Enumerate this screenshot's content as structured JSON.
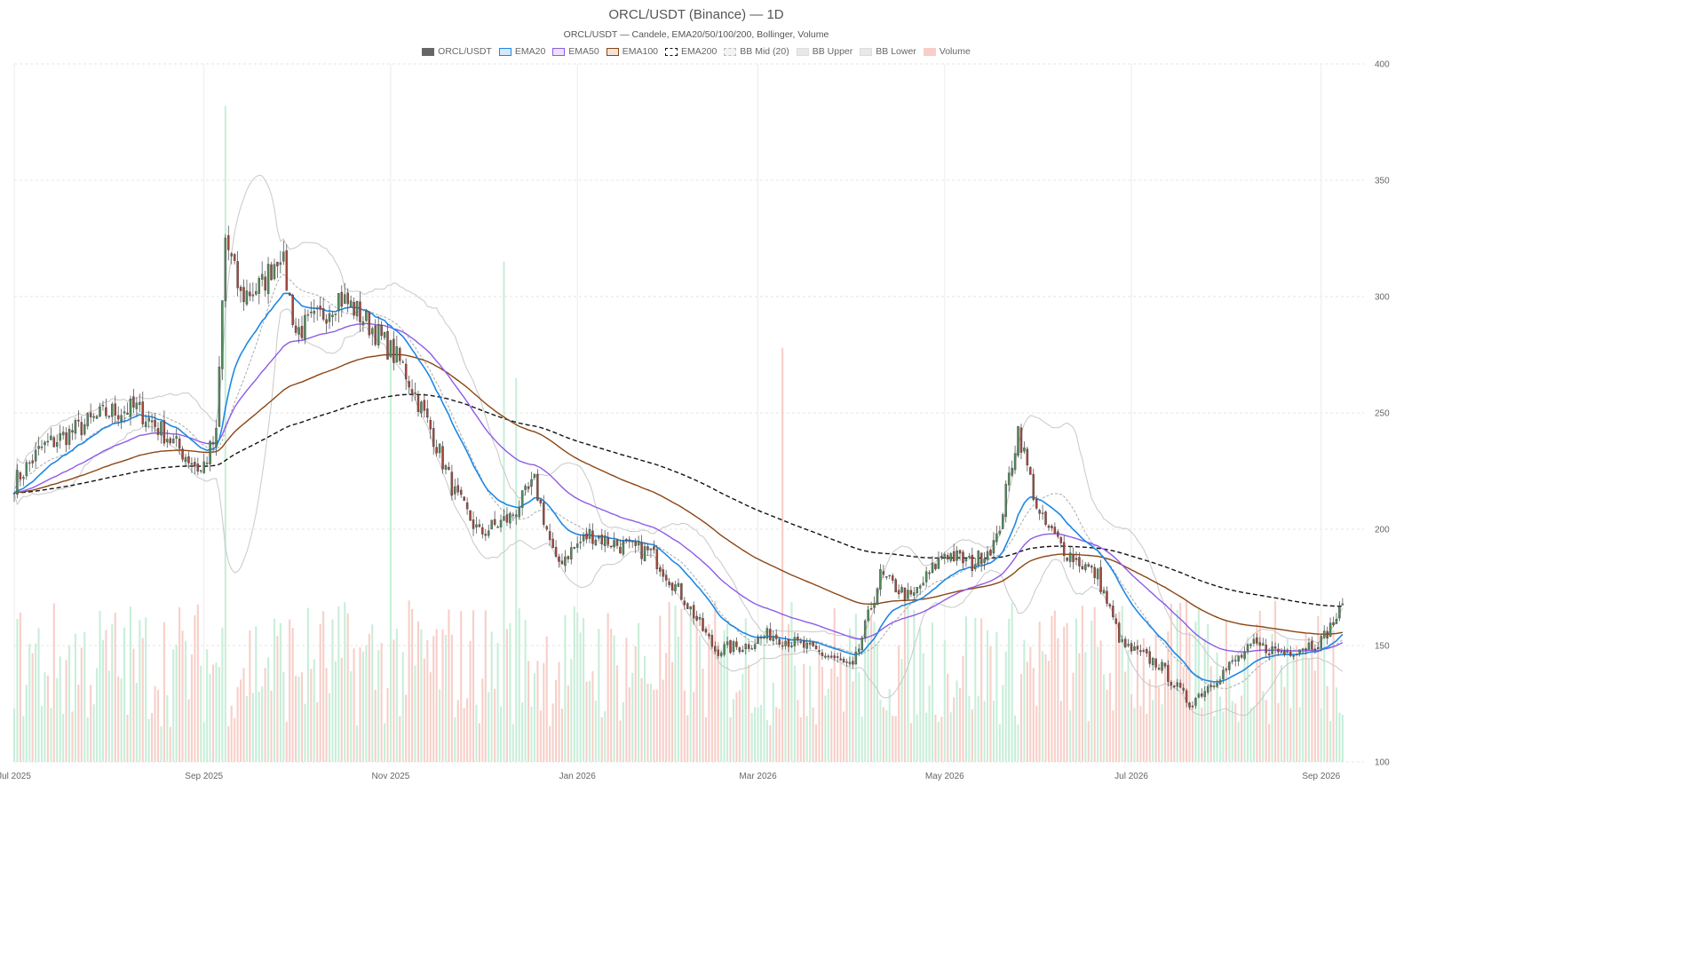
{
  "chart_data": {
    "type": "candlestick",
    "title": "ORCL/USDT (Binance) — 1D",
    "subtitle": "ORCL/USDT — Candele, EMA20/50/100/200, Bollinger, Volume",
    "legend": [
      {
        "name": "ORCL/USDT",
        "color": "#666666",
        "fill": "#666666",
        "style": "solid"
      },
      {
        "name": "EMA20",
        "color": "#1e88e5",
        "fill": "#d6e8fa",
        "style": "solid"
      },
      {
        "name": "EMA50",
        "color": "#8e5be8",
        "fill": "#ece1fb",
        "style": "solid"
      },
      {
        "name": "EMA100",
        "color": "#8b4513",
        "fill": "#f2e4d9",
        "style": "solid"
      },
      {
        "name": "EMA200",
        "color": "#111111",
        "fill": "#ffffff",
        "style": "dashed"
      },
      {
        "name": "BB Mid (20)",
        "color": "#bbbbbb",
        "fill": "#f3f3f3",
        "style": "dashed"
      },
      {
        "name": "BB Upper",
        "color": "#dddddd",
        "fill": "#e8e8e8",
        "style": "solid"
      },
      {
        "name": "BB Lower",
        "color": "#dddddd",
        "fill": "#e8e8e8",
        "style": "solid"
      },
      {
        "name": "Volume",
        "color": "#f7cfc8",
        "fill": "#f7cfc8",
        "style": "solid"
      }
    ],
    "x_range": [
      "2025-07-01",
      "2026-09-15"
    ],
    "x_ticks": [
      "Jul 2025",
      "Sep 2025",
      "Nov 2025",
      "Jan 2026",
      "Mar 2026",
      "May 2026",
      "Jul 2026",
      "Sep 2026"
    ],
    "y_range": [
      100,
      400
    ],
    "y_ticks": [
      100,
      150,
      200,
      250,
      300,
      350,
      400
    ],
    "grid": true,
    "legend_position": "top-center",
    "colors": {
      "up": "#26a69a",
      "down": "#b5473a",
      "up_volume": "#c8eed9",
      "down_volume": "#f7cfc8"
    },
    "anchors_close": [
      [
        "2025-07-01",
        220
      ],
      [
        "2025-07-10",
        235
      ],
      [
        "2025-07-20",
        242
      ],
      [
        "2025-07-31",
        250
      ],
      [
        "2025-08-10",
        252
      ],
      [
        "2025-08-20",
        240
      ],
      [
        "2025-08-31",
        225
      ],
      [
        "2025-09-05",
        240
      ],
      [
        "2025-09-08",
        325
      ],
      [
        "2025-09-13",
        300
      ],
      [
        "2025-09-20",
        305
      ],
      [
        "2025-09-26",
        320
      ],
      [
        "2025-10-01",
        285
      ],
      [
        "2025-10-08",
        290
      ],
      [
        "2025-10-15",
        300
      ],
      [
        "2025-10-20",
        295
      ],
      [
        "2025-10-27",
        285
      ],
      [
        "2025-11-05",
        270
      ],
      [
        "2025-11-15",
        240
      ],
      [
        "2025-11-22",
        215
      ],
      [
        "2025-11-30",
        198
      ],
      [
        "2025-12-10",
        205
      ],
      [
        "2025-12-18",
        220
      ],
      [
        "2025-12-25",
        185
      ],
      [
        "2026-01-05",
        198
      ],
      [
        "2026-01-15",
        193
      ],
      [
        "2026-01-25",
        190
      ],
      [
        "2026-02-05",
        170
      ],
      [
        "2026-02-15",
        148
      ],
      [
        "2026-02-25",
        150
      ],
      [
        "2026-03-05",
        155
      ],
      [
        "2026-03-15",
        150
      ],
      [
        "2026-03-25",
        145
      ],
      [
        "2026-04-01",
        140
      ],
      [
        "2026-04-10",
        180
      ],
      [
        "2026-04-20",
        170
      ],
      [
        "2026-05-01",
        190
      ],
      [
        "2026-05-10",
        185
      ],
      [
        "2026-05-18",
        195
      ],
      [
        "2026-05-25",
        243
      ],
      [
        "2026-06-01",
        205
      ],
      [
        "2026-06-10",
        190
      ],
      [
        "2026-06-20",
        180
      ],
      [
        "2026-06-28",
        150
      ],
      [
        "2026-07-10",
        142
      ],
      [
        "2026-07-20",
        125
      ],
      [
        "2026-08-01",
        140
      ],
      [
        "2026-08-10",
        150
      ],
      [
        "2026-08-20",
        147
      ],
      [
        "2026-09-01",
        152
      ],
      [
        "2026-09-08",
        166
      ]
    ],
    "volume_spikes": [
      [
        "2025-09-08",
        382
      ],
      [
        "2025-11-01",
        278
      ],
      [
        "2025-12-08",
        315
      ],
      [
        "2025-12-12",
        265
      ],
      [
        "2026-03-09",
        278
      ]
    ]
  }
}
